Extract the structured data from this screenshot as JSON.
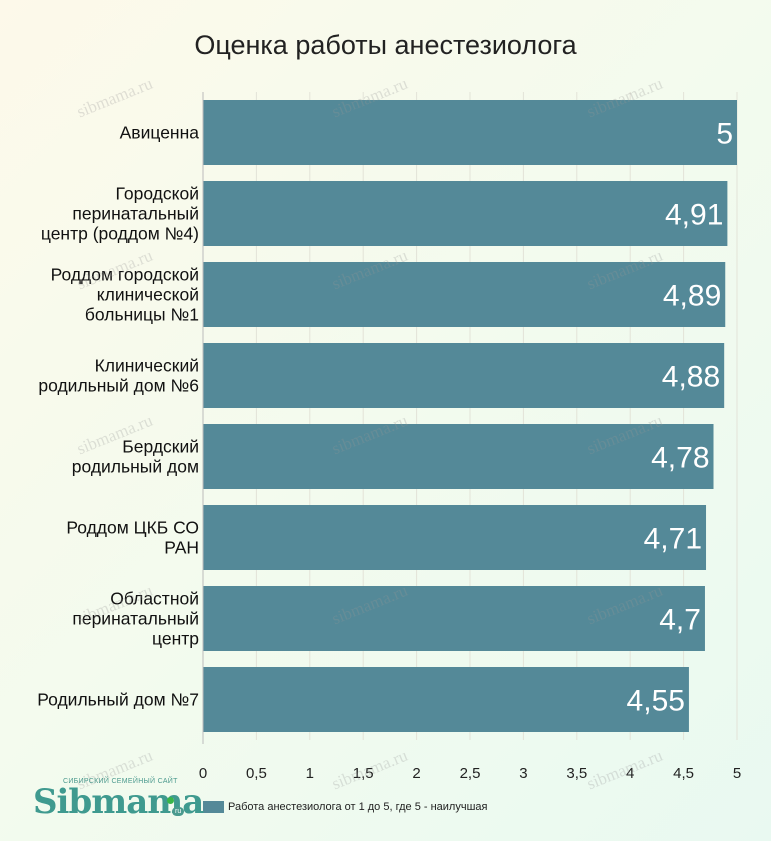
{
  "chart_data": {
    "type": "bar",
    "orientation": "horizontal",
    "title": "Оценка работы анестезиолога",
    "categories": [
      "Авиценна",
      "Городской перинатальный центр (роддом №4)",
      "Роддом городской клинической больницы №1",
      "Клинический родильный дом №6",
      "Бердский родильный дом",
      "Роддом ЦКБ СО РАН",
      "Областной перинатальный центр",
      "Родильный дом №7"
    ],
    "category_lines": [
      [
        "Авиценна"
      ],
      [
        "Городской",
        "перинатальный",
        "центр (роддом №4)"
      ],
      [
        "Роддом городской",
        "клинической",
        "больницы №1"
      ],
      [
        "Клинический",
        "родильный дом №6"
      ],
      [
        "Бердский",
        "родильный дом"
      ],
      [
        "Роддом ЦКБ СО",
        "РАН"
      ],
      [
        "Областной",
        "перинатальный",
        "центр"
      ],
      [
        "Родильный дом №7"
      ]
    ],
    "values": [
      5,
      4.91,
      4.89,
      4.88,
      4.78,
      4.71,
      4.7,
      4.55
    ],
    "value_labels": [
      "5",
      "4,91",
      "4,89",
      "4,88",
      "4,78",
      "4,71",
      "4,7",
      "4,55"
    ],
    "xlim": [
      0,
      5
    ],
    "x_ticks": [
      0,
      0.5,
      1,
      1.5,
      2,
      2.5,
      3,
      3.5,
      4,
      4.5,
      5
    ],
    "x_tick_labels": [
      "0",
      "0,5",
      "1",
      "1,5",
      "2",
      "2,5",
      "3",
      "3,5",
      "4",
      "4,5",
      "5"
    ],
    "xlabel": "",
    "ylabel": "",
    "grid": true,
    "legend_position": "bottom",
    "series": [
      {
        "name": "Работа анестезиолога от 1 до 5, где 5 - наилучшая",
        "color": "#548998"
      }
    ],
    "bar_color": "#548998",
    "bar_label_color": "#ffffff",
    "grid_color": "#e3e3d8"
  },
  "branding": {
    "logo_text": "Sibmama",
    "logo_tagline": "СИБИРСКИЙ СЕМЕЙНЫЙ САЙТ",
    "logo_suffix": "ru",
    "watermark": "sibmama.ru"
  }
}
